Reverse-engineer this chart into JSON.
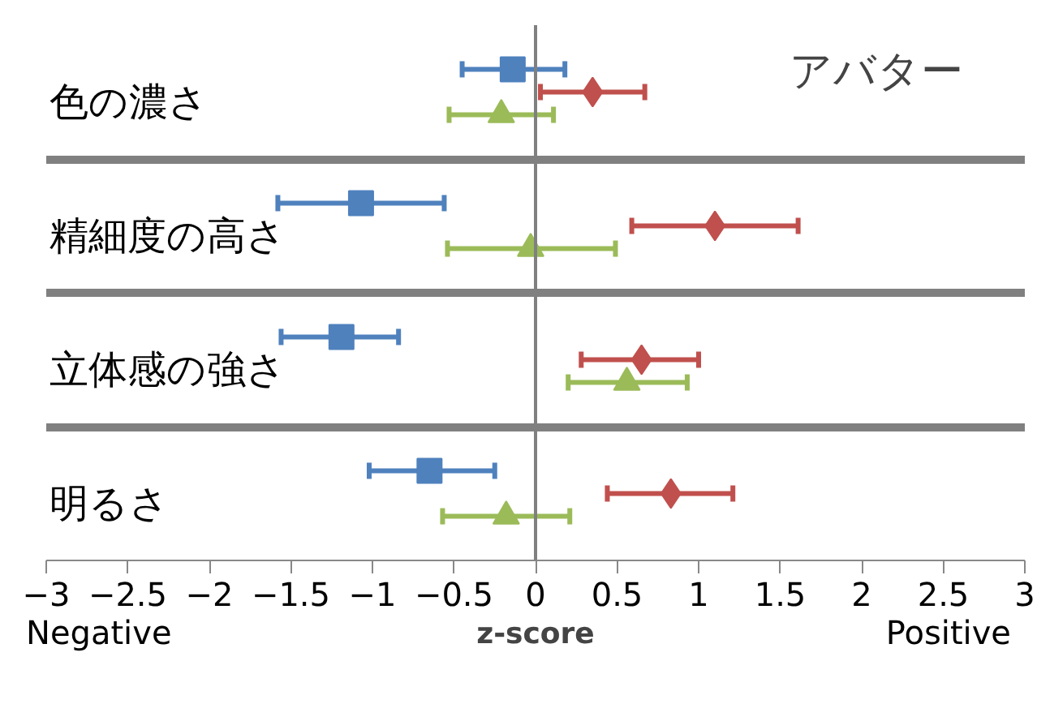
{
  "chart_data": {
    "type": "scatter",
    "orientation": "horizontal",
    "title": "アバター",
    "xlabel": "z-score",
    "categories": [
      "色の濃さ",
      "精細度の高さ",
      "立体感の強さ",
      "明るさ"
    ],
    "series": [
      {
        "color": "#4f81bd",
        "marker": "square",
        "values": [
          -0.14,
          -1.07,
          -1.19,
          -0.65
        ],
        "errors": [
          [
            -0.45,
            0.18
          ],
          [
            -1.58,
            -0.56
          ],
          [
            -1.56,
            -0.84
          ],
          [
            -1.02,
            -0.25
          ]
        ]
      },
      {
        "color": "#c0504d",
        "marker": "diamond",
        "values": [
          0.35,
          1.1,
          0.65,
          0.83
        ],
        "errors": [
          [
            0.03,
            0.67
          ],
          [
            0.59,
            1.61
          ],
          [
            0.28,
            1.0
          ],
          [
            0.44,
            1.21
          ]
        ]
      },
      {
        "color": "#9bbb59",
        "marker": "triangle",
        "values": [
          -0.21,
          -0.03,
          0.56,
          -0.18
        ],
        "errors": [
          [
            -0.53,
            0.11
          ],
          [
            -0.54,
            0.49
          ],
          [
            0.2,
            0.93
          ],
          [
            -0.57,
            0.21
          ]
        ]
      }
    ],
    "xlim": [
      -3,
      3
    ],
    "xticks": [
      -3,
      -2.5,
      -2,
      -1.5,
      -1,
      -0.5,
      0,
      0.5,
      1,
      1.5,
      2,
      2.5,
      3
    ],
    "grid": "y",
    "ref_lines": [
      {
        "axis": "x",
        "value": 0
      }
    ],
    "annotations": [
      "Negative",
      "Positive"
    ]
  }
}
